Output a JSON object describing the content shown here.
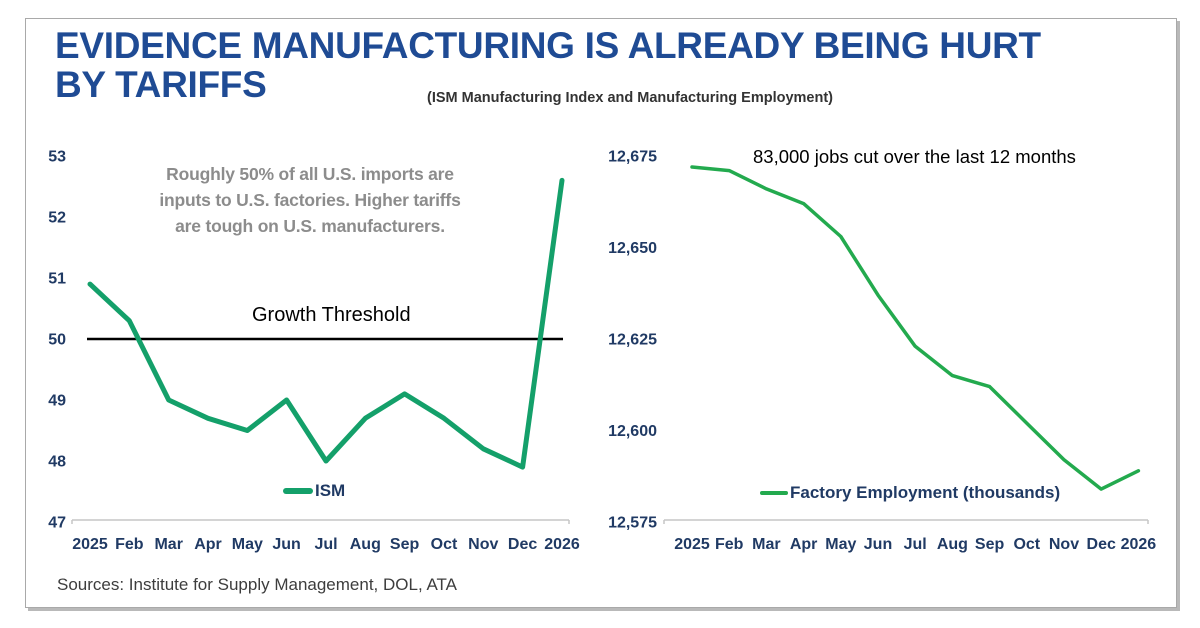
{
  "page": {
    "title_line1": "EVIDENCE MANUFACTURING IS ALREADY BEING HURT",
    "title_line2": "BY TARIFFS",
    "subtitle": "(ISM Manufacturing Index and Manufacturing Employment)",
    "source_note": "Sources: Institute for Supply Management, DOL, ATA",
    "title_color": "#1f4b94",
    "axis_label_color": "#203a64"
  },
  "chart_data": [
    {
      "type": "line",
      "panel": "left",
      "categories": [
        "2025",
        "Feb",
        "Mar",
        "Apr",
        "May",
        "Jun",
        "Jul",
        "Aug",
        "Sep",
        "Oct",
        "Nov",
        "Dec",
        "2026"
      ],
      "series": [
        {
          "name": "ISM",
          "values": [
            50.9,
            50.3,
            49.0,
            48.7,
            48.5,
            49.0,
            48.0,
            48.7,
            49.1,
            48.7,
            48.2,
            47.9,
            52.6
          ]
        }
      ],
      "ylim": [
        47,
        53
      ],
      "yticks": [
        {
          "v": 53,
          "label": "53"
        },
        {
          "v": 52,
          "label": "52"
        },
        {
          "v": 51,
          "label": "51"
        },
        {
          "v": 50,
          "label": "50"
        },
        {
          "v": 49,
          "label": "49"
        },
        {
          "v": 48,
          "label": "48"
        },
        {
          "v": 47,
          "label": "47"
        }
      ],
      "xlabel": "",
      "ylabel": "",
      "grid": false,
      "legend_position": "bottom-center",
      "line_color": "#14a06a",
      "threshold": {
        "value": 50,
        "label": "Growth Threshold"
      },
      "annotation_lines": [
        "Roughly 50% of all U.S. imports are",
        "inputs to U.S. factories. Higher tariffs",
        "are tough on U.S. manufacturers."
      ]
    },
    {
      "type": "line",
      "panel": "right",
      "categories": [
        "2025",
        "Feb",
        "Mar",
        "Apr",
        "May",
        "Jun",
        "Jul",
        "Aug",
        "Sep",
        "Oct",
        "Nov",
        "Dec",
        "2026"
      ],
      "series": [
        {
          "name": "Factory Employment (thousands)",
          "values": [
            12672,
            12671,
            12666,
            12662,
            12653,
            12637,
            12623,
            12615,
            12612,
            12602,
            12592,
            12584,
            12589
          ]
        }
      ],
      "ylim": [
        12575,
        12675
      ],
      "yticks": [
        {
          "v": 12675,
          "label": "12,675"
        },
        {
          "v": 12650,
          "label": "12,650"
        },
        {
          "v": 12625,
          "label": "12,625"
        },
        {
          "v": 12600,
          "label": "12,600"
        },
        {
          "v": 12575,
          "label": "12,575"
        }
      ],
      "xlabel": "",
      "ylabel": "",
      "grid": false,
      "legend_position": "bottom-center",
      "line_color": "#23aa4e",
      "annotation": "83,000 jobs cut over the last 12 months"
    }
  ]
}
